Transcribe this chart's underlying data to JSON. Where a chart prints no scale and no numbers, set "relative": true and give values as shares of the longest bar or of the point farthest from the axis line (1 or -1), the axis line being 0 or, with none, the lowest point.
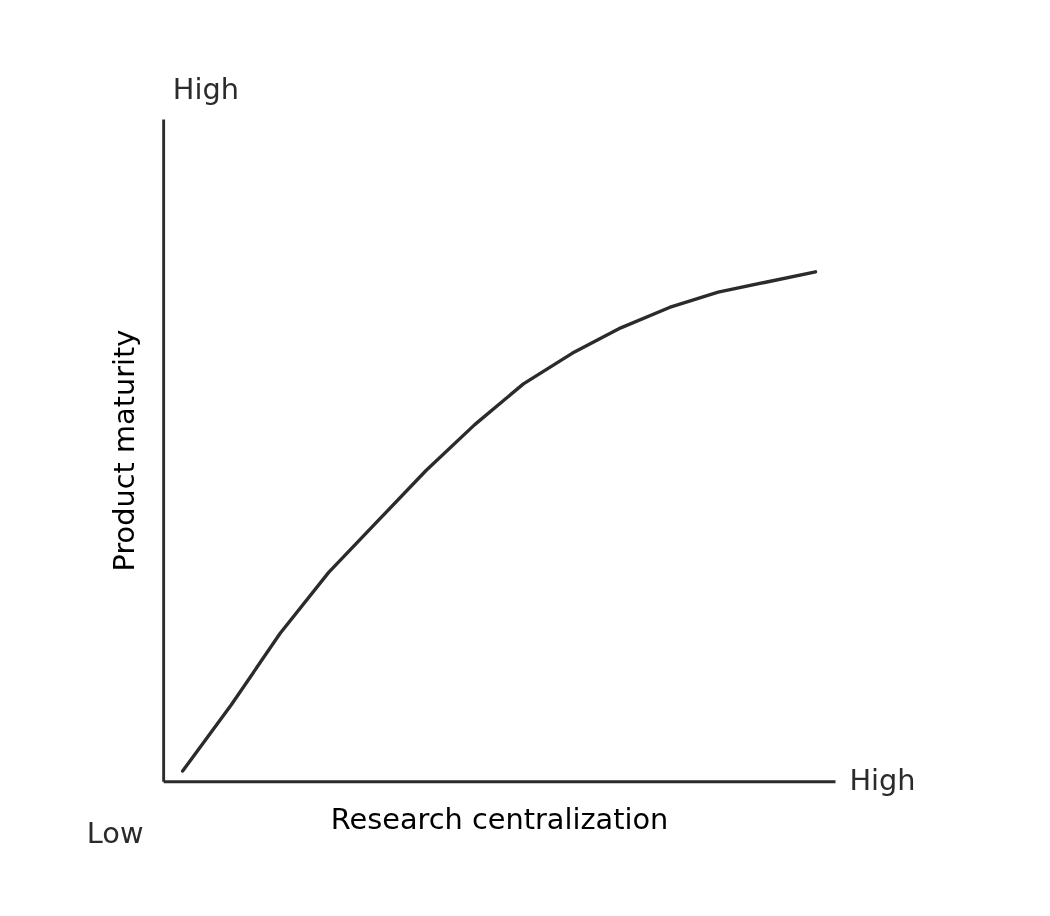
{
  "chart_data": {
    "type": "line",
    "relative": true,
    "xlabel": "Research centralization",
    "ylabel": "Product maturity",
    "categories": [
      null,
      null,
      null,
      null,
      null,
      null,
      null,
      null,
      null,
      null,
      null,
      null,
      null,
      null
    ],
    "series": [
      {
        "color": "#2b2b2b",
        "values": [
          0.02,
          0.15,
          0.29,
          0.41,
          0.51,
          0.61,
          0.7,
          0.78,
          0.84,
          0.89,
          0.93,
          0.96,
          0.98,
          1.0
        ]
      }
    ],
    "annotations": [
      "High",
      "High",
      "Low"
    ],
    "grid": false,
    "marker": "none",
    "line_style": "solid"
  }
}
